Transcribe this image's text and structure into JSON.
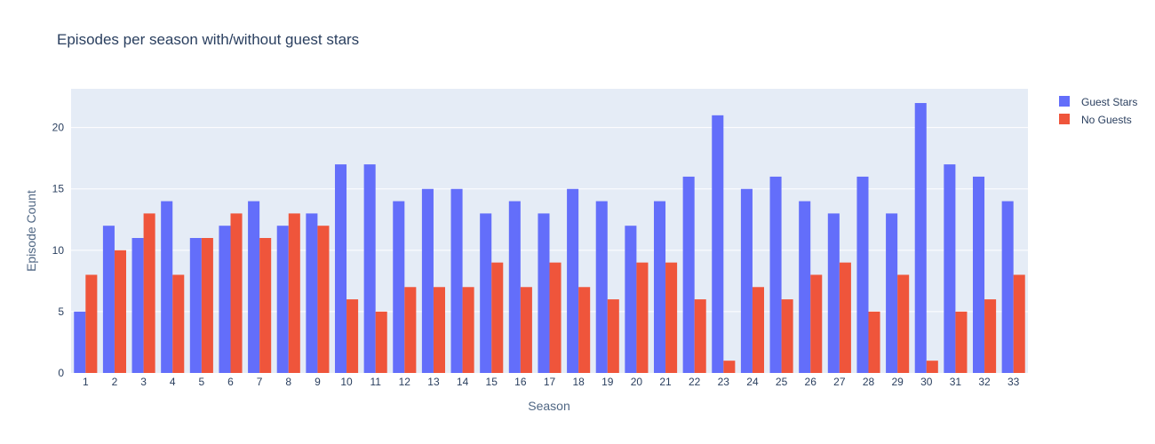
{
  "colors": {
    "guest": "#636efa",
    "no_guest": "#ef553b",
    "plot_bg": "#e5ecf6"
  },
  "chart_data": {
    "type": "bar",
    "title": "Episodes per season with/without guest stars",
    "xlabel": "Season",
    "ylabel": "Episode Count",
    "categories": [
      "1",
      "2",
      "3",
      "4",
      "5",
      "6",
      "7",
      "8",
      "9",
      "10",
      "11",
      "12",
      "13",
      "14",
      "15",
      "16",
      "17",
      "18",
      "19",
      "20",
      "21",
      "22",
      "23",
      "24",
      "25",
      "26",
      "27",
      "28",
      "29",
      "30",
      "31",
      "32",
      "33"
    ],
    "series": [
      {
        "name": "Guest Stars",
        "values": [
          5,
          12,
          11,
          14,
          11,
          12,
          14,
          12,
          13,
          17,
          17,
          14,
          15,
          15,
          13,
          14,
          13,
          15,
          14,
          12,
          14,
          16,
          21,
          15,
          16,
          14,
          13,
          16,
          13,
          22,
          17,
          16,
          14
        ]
      },
      {
        "name": "No Guests",
        "values": [
          8,
          10,
          13,
          8,
          11,
          13,
          11,
          13,
          12,
          6,
          5,
          7,
          7,
          7,
          9,
          7,
          9,
          7,
          6,
          9,
          9,
          6,
          1,
          7,
          6,
          8,
          9,
          5,
          8,
          1,
          5,
          6,
          8
        ]
      }
    ],
    "yticks": [
      0,
      5,
      10,
      15,
      20
    ],
    "ylim": [
      0,
      23.16
    ],
    "grid": true,
    "legend_position": "top-right"
  }
}
